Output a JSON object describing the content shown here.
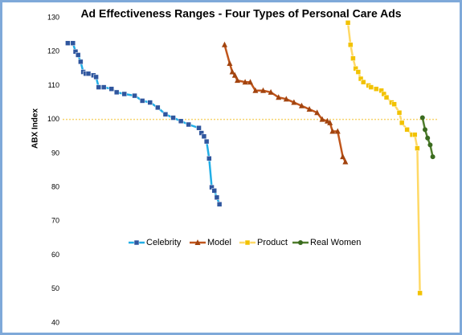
{
  "chart_data": {
    "type": "line",
    "title": "Ad Effectiveness Ranges - Four Types of Personal Care Ads",
    "ylabel": "ABX Index",
    "xlim": [
      0,
      146
    ],
    "ylim": [
      40,
      130
    ],
    "yticks": [
      40,
      50,
      60,
      70,
      80,
      90,
      100,
      110,
      120,
      130
    ],
    "reference_y": 100,
    "reference_color": "#f7d46e",
    "series": [
      {
        "name": "Celebrity",
        "color": "#22aee6",
        "marker_color": "#2f569e",
        "marker": "square",
        "x": [
          2,
          4,
          5,
          6,
          7,
          8,
          9,
          10,
          12,
          13,
          14,
          16,
          19,
          21,
          24,
          28,
          31,
          34,
          37,
          40,
          43,
          46,
          49,
          53,
          54,
          55,
          56,
          57,
          58,
          59,
          60,
          61
        ],
        "values": [
          122.5,
          122.5,
          120,
          119,
          117,
          114,
          113.5,
          113.5,
          113,
          112.5,
          109.5,
          109.5,
          109,
          108,
          107.5,
          107,
          105.5,
          105,
          103.5,
          101.5,
          100.5,
          99.5,
          98.5,
          97.5,
          96,
          95,
          93.5,
          88.5,
          80,
          79,
          77,
          75
        ]
      },
      {
        "name": "Model",
        "color": "#c0561c",
        "marker_color": "#a2440f",
        "marker": "triangle",
        "x": [
          63,
          65,
          66,
          67,
          68,
          71,
          73,
          75,
          78,
          81,
          84,
          87,
          90,
          93,
          96,
          99,
          101,
          103,
          104,
          105,
          107,
          109,
          110
        ],
        "values": [
          122,
          116.5,
          114,
          113,
          111.5,
          111,
          111,
          108.5,
          108.5,
          108,
          106.5,
          106,
          105,
          104,
          103,
          102,
          100,
          99.5,
          99,
          96.5,
          96.5,
          89,
          87.5
        ]
      },
      {
        "name": "Product",
        "color": "#ffd966",
        "marker_color": "#f2c200",
        "marker": "square",
        "x": [
          111,
          112,
          113,
          114,
          115,
          116,
          117,
          119,
          120,
          122,
          124,
          125,
          126,
          128,
          129,
          131,
          132,
          134,
          136,
          137,
          138,
          139
        ],
        "values": [
          128.5,
          122,
          118,
          115,
          114,
          112,
          111,
          110,
          109.5,
          109,
          108.5,
          107.5,
          106.5,
          105,
          104.5,
          102,
          99,
          97,
          95.5,
          95.5,
          91.5,
          48.8
        ]
      },
      {
        "name": "Real Women",
        "color": "#4f7d2c",
        "marker_color": "#3a6b1f",
        "marker": "circle",
        "x": [
          140,
          141,
          142,
          143,
          144
        ],
        "values": [
          100.5,
          97,
          94.5,
          92.5,
          89
        ]
      }
    ]
  }
}
